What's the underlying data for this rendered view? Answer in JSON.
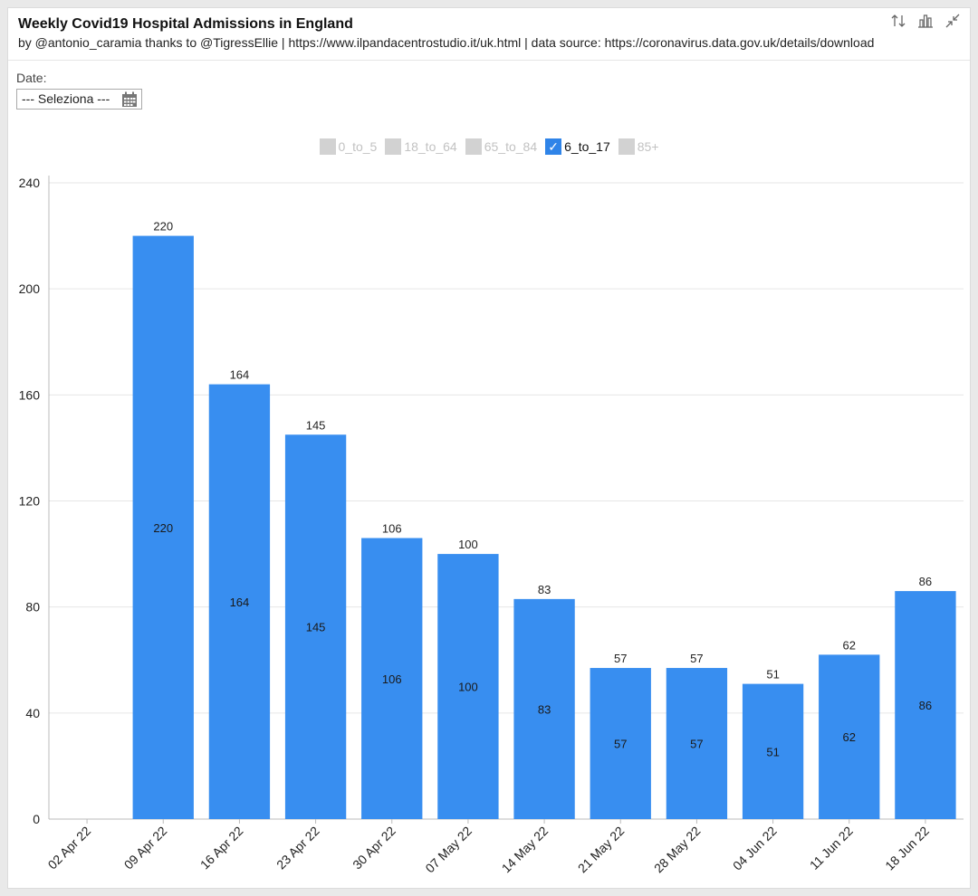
{
  "header": {
    "title": "Weekly Covid19 Hospital Admissions in England",
    "subtitle": "by @antonio_caramia thanks to @TigressEllie | https://www.ilpandacentrostudio.it/uk.html | data source: https://coronavirus.data.gov.uk/details/download",
    "tools": [
      "sort-icon",
      "bar-chart-icon",
      "collapse-icon"
    ]
  },
  "filter": {
    "date_label": "Date:",
    "date_value": "--- Seleziona ---",
    "icon": "calendar-icon"
  },
  "legend": [
    {
      "label": "0_to_5",
      "checked": false
    },
    {
      "label": "18_to_64",
      "checked": false
    },
    {
      "label": "65_to_84",
      "checked": false
    },
    {
      "label": "6_to_17",
      "checked": true
    },
    {
      "label": "85+",
      "checked": false
    }
  ],
  "colors": {
    "bar": "#388ef0",
    "legend_active": "#2f84e8",
    "legend_inactive": "#d2d2d2",
    "grid": "#e6e6e6"
  },
  "chart_data": {
    "type": "bar",
    "categories": [
      "02 Apr 22",
      "09 Apr 22",
      "16 Apr 22",
      "23 Apr 22",
      "30 Apr 22",
      "07 May 22",
      "14 May 22",
      "21 May 22",
      "28 May 22",
      "04 Jun 22",
      "11 Jun 22",
      "18 Jun 22"
    ],
    "series": [
      {
        "name": "6_to_17",
        "values": [
          null,
          220,
          164,
          145,
          106,
          100,
          83,
          57,
          57,
          51,
          62,
          86
        ]
      }
    ],
    "ylim": [
      0,
      240
    ],
    "yticks": [
      0,
      40,
      80,
      120,
      160,
      200,
      240
    ],
    "grid": true,
    "data_labels": "top and center",
    "legend_position": "top"
  }
}
